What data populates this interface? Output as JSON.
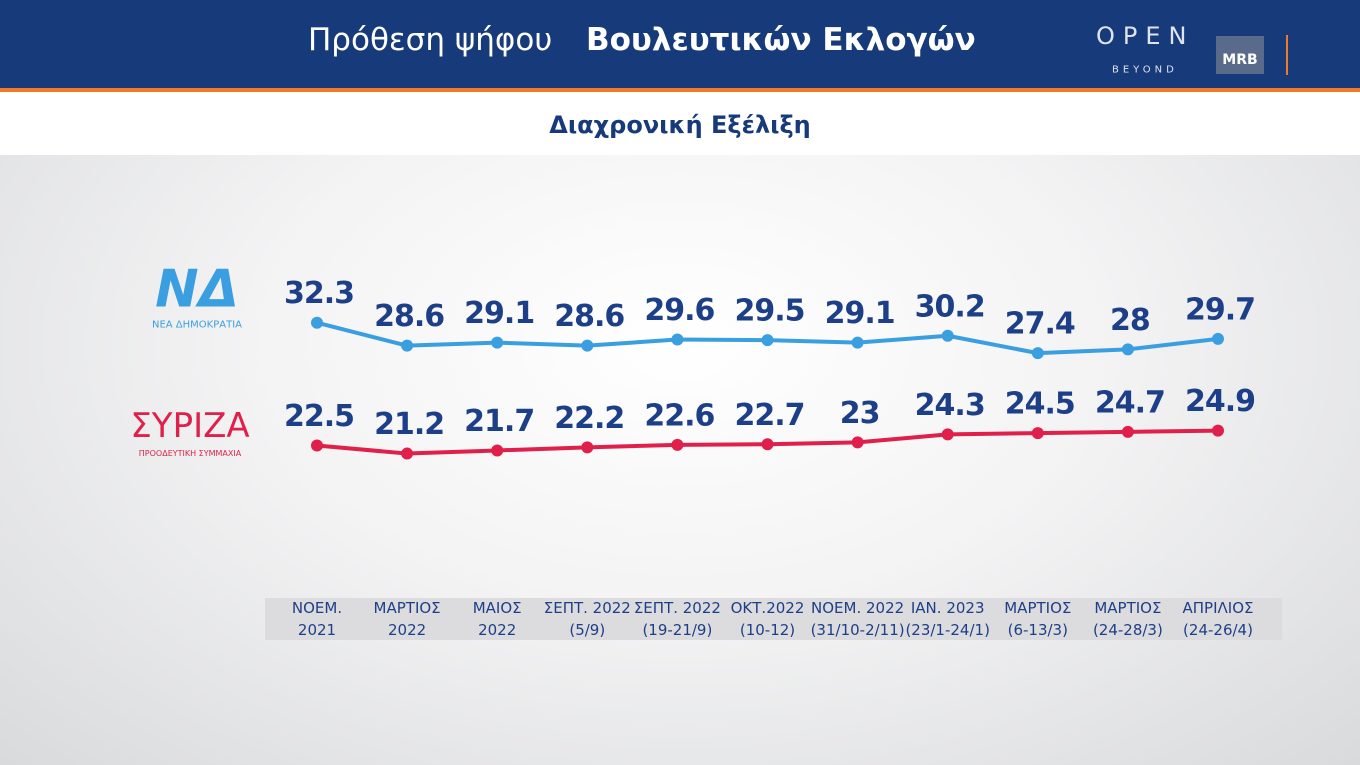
{
  "header": {
    "title_regular": "Πρόθεση ψήφου",
    "title_bold": "Βουλευτικών Εκλογών",
    "subtitle": "Διαχρονική Εξέλιξη",
    "brand": "OPEN",
    "brand_sub": "BEYOND",
    "partner": "MRB"
  },
  "chart_data": {
    "type": "line",
    "categories": [
      "ΝΟΕΜ.\n2021",
      "ΜΑΡΤΙΟΣ\n2022",
      "ΜΑΙΟΣ\n2022",
      "ΣΕΠΤ. 2022\n(5/9)",
      "ΣΕΠΤ. 2022\n(19-21/9)",
      "ΟΚΤ.2022\n(10-12)",
      "ΝΟΕΜ. 2022\n(31/10-2/11)",
      "ΙΑΝ. 2023\n(23/1-24/1)",
      "ΜΑΡΤΙΟΣ\n(6-13/3)",
      "ΜΑΡΤΙΟΣ\n(24-28/3)",
      "ΑΠΡΙΛΙΟΣ\n(24-26/4)"
    ],
    "series": [
      {
        "name": "ΝΕΑ ΔΗΜΟΚΡΑΤΙΑ",
        "logo": "ΝΔ",
        "color": "#3a9fe0",
        "values": [
          32.3,
          28.6,
          29.1,
          28.6,
          29.6,
          29.5,
          29.1,
          30.2,
          27.4,
          28,
          29.7
        ]
      },
      {
        "name": "ΣΥΡΙΖΑ",
        "caption": "ΠΡΟΟΔΕΥΤΙΚΗ ΣΥΜΜΑΧΙΑ",
        "color": "#e0204a",
        "axis": "y2",
        "values": [
          22.5,
          21.2,
          21.7,
          22.2,
          22.6,
          22.7,
          23,
          24.3,
          24.5,
          24.7,
          24.9
        ]
      }
    ],
    "ylim": [
      -10,
      50
    ],
    "y2lim": [
      0,
      60
    ]
  }
}
